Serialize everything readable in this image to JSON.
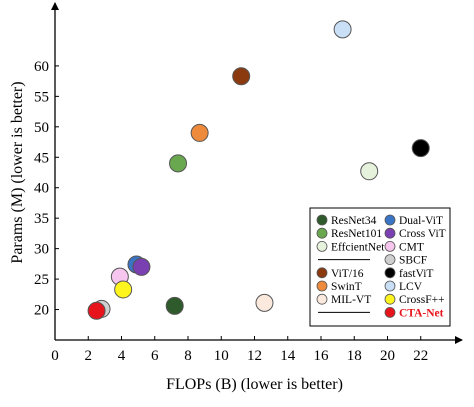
{
  "chart_data": {
    "type": "scatter",
    "xlabel": "FLOPs (B) (lower is better)",
    "ylabel": "Params (M) (lower is better)",
    "xlim": [
      0,
      24
    ],
    "ylim": [
      15,
      70
    ],
    "xticks": [
      "0",
      "2",
      "4",
      "6",
      "8",
      "10",
      "12",
      "14",
      "16",
      "18",
      "20",
      "22"
    ],
    "yticks": [
      "20",
      "25",
      "30",
      "35",
      "40",
      "45",
      "50",
      "55",
      "60"
    ],
    "legend_position": "bottom-right",
    "series": [
      {
        "name": "ResNet34",
        "x": 7.2,
        "y": 20.6,
        "color": "#2f5a2b"
      },
      {
        "name": "ResNet101",
        "x": 7.4,
        "y": 44.0,
        "color": "#6aa84f"
      },
      {
        "name": "EffcientNet",
        "x": 18.9,
        "y": 42.7,
        "color": "#e6f2dc"
      },
      {
        "name": "ViT/16",
        "x": 11.2,
        "y": 58.3,
        "color": "#8b3a0f"
      },
      {
        "name": "SwinT",
        "x": 8.7,
        "y": 49.0,
        "color": "#ee8a3c"
      },
      {
        "name": "MIL-VT",
        "x": 12.6,
        "y": 21.1,
        "color": "#fbe9de"
      },
      {
        "name": "Dual-ViT",
        "x": 4.9,
        "y": 27.4,
        "color": "#3a74c4"
      },
      {
        "name": "Cross ViT",
        "x": 5.2,
        "y": 27.0,
        "color": "#7a3fb0"
      },
      {
        "name": "CMT",
        "x": 3.9,
        "y": 25.4,
        "color": "#f7c6ef"
      },
      {
        "name": "SBCF",
        "x": 2.8,
        "y": 20.1,
        "color": "#cfcfcf"
      },
      {
        "name": "fastViT",
        "x": 22.0,
        "y": 46.5,
        "color": "#000000"
      },
      {
        "name": "LCV",
        "x": 17.3,
        "y": 66.0,
        "color": "#c9dff6"
      },
      {
        "name": "CrossF++",
        "x": 4.1,
        "y": 23.3,
        "color": "#fff51e"
      },
      {
        "name": "CTA-Net",
        "x": 2.5,
        "y": 19.8,
        "color": "#e8141b"
      }
    ],
    "legend": {
      "left": [
        "ResNet34",
        "ResNet101",
        "EffcientNet",
        "ViT/16",
        "SwinT",
        "MIL-VT"
      ],
      "right": [
        "Dual-ViT",
        "Cross ViT",
        "CMT",
        "SBCF",
        "fastViT",
        "LCV",
        "CrossF++",
        "CTA-Net"
      ],
      "highlight": "CTA-Net"
    }
  }
}
